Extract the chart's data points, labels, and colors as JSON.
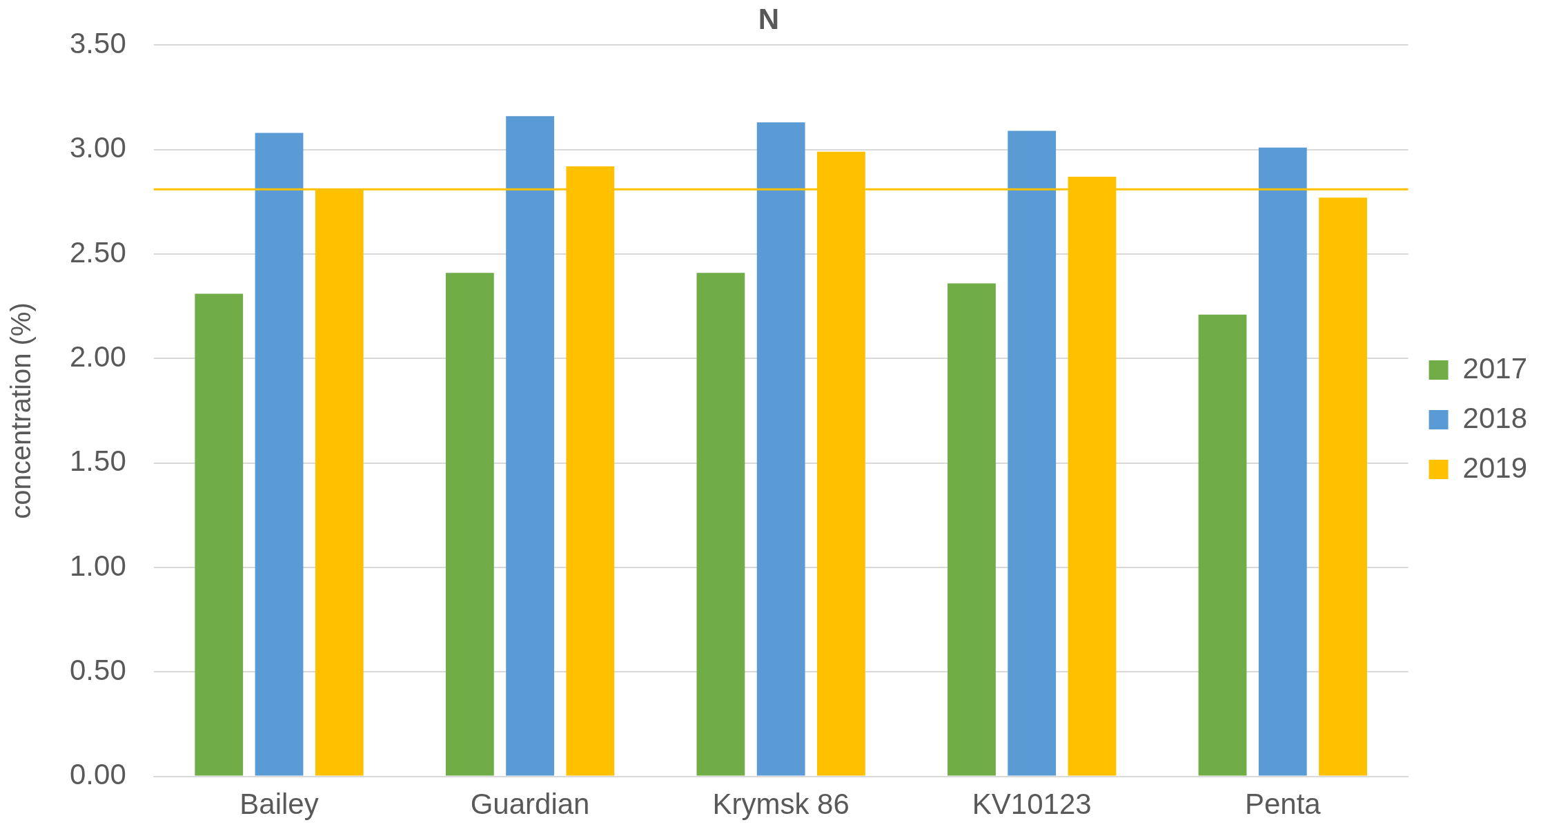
{
  "chart_data": {
    "type": "bar",
    "title": "N",
    "ylabel": "concentration (%)",
    "categories": [
      "Bailey",
      "Guardian",
      "Krymsk 86",
      "KV10123",
      "Penta"
    ],
    "series": [
      {
        "name": "2017",
        "color": "#70ad47",
        "values": [
          2.31,
          2.41,
          2.41,
          2.36,
          2.21
        ]
      },
      {
        "name": "2018",
        "color": "#5b9bd5",
        "values": [
          3.08,
          3.16,
          3.13,
          3.09,
          3.01
        ]
      },
      {
        "name": "2019",
        "color": "#ffc000",
        "values": [
          2.81,
          2.92,
          2.99,
          2.87,
          2.77
        ]
      }
    ],
    "ylim": [
      0,
      3.5
    ],
    "yticks": [
      {
        "value": 0,
        "label": "0.00"
      },
      {
        "value": 0.5,
        "label": "0.50"
      },
      {
        "value": 1,
        "label": "1.00"
      },
      {
        "value": 1.5,
        "label": "1.50"
      },
      {
        "value": 2,
        "label": "2.00"
      },
      {
        "value": 2.5,
        "label": "2.50"
      },
      {
        "value": 3,
        "label": "3.00"
      },
      {
        "value": 3.5,
        "label": "3.50"
      }
    ],
    "ref_lines": [
      {
        "axis": "y",
        "value": 2.81,
        "color": "#ffc000"
      }
    ],
    "grid": "y",
    "legend": "right"
  }
}
